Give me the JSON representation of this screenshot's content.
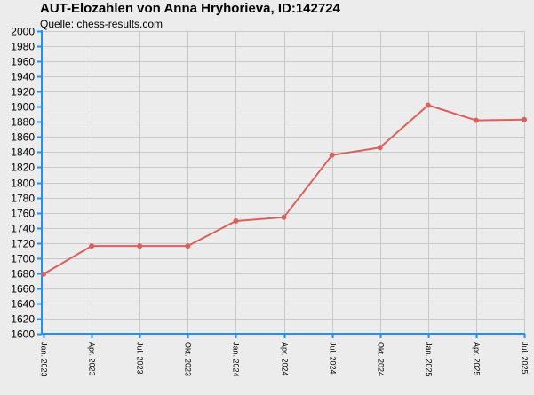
{
  "title": "AUT-Elozahlen von Anna Hryhorieva, ID:142724",
  "subtitle": "Quelle: chess-results.com",
  "colors": {
    "background": "#ececec",
    "grid": "#c8c8c8",
    "axis": "#1e90ff",
    "line": "#d9605f"
  },
  "chart_data": {
    "type": "line",
    "title": "AUT-Elozahlen von Anna Hryhorieva, ID:142724",
    "subtitle": "Quelle: chess-results.com",
    "categories": [
      "Jan. 2023",
      "Apr. 2023",
      "Jul. 2023",
      "Okt. 2023",
      "Jan. 2024",
      "Apr. 2024",
      "Jul. 2024",
      "Okt. 2024",
      "Jan. 2025",
      "Apr. 2025",
      "Jul. 2025"
    ],
    "values": [
      1679,
      1716,
      1716,
      1716,
      1749,
      1754,
      1836,
      1846,
      1902,
      1882,
      1883
    ],
    "ylim": [
      1600,
      2000
    ],
    "yticks": [
      1600,
      1620,
      1640,
      1660,
      1680,
      1700,
      1720,
      1740,
      1760,
      1780,
      1800,
      1820,
      1840,
      1860,
      1880,
      1900,
      1920,
      1940,
      1960,
      1980,
      2000
    ],
    "grid": true,
    "markers": true,
    "xlabel": "",
    "ylabel": ""
  }
}
